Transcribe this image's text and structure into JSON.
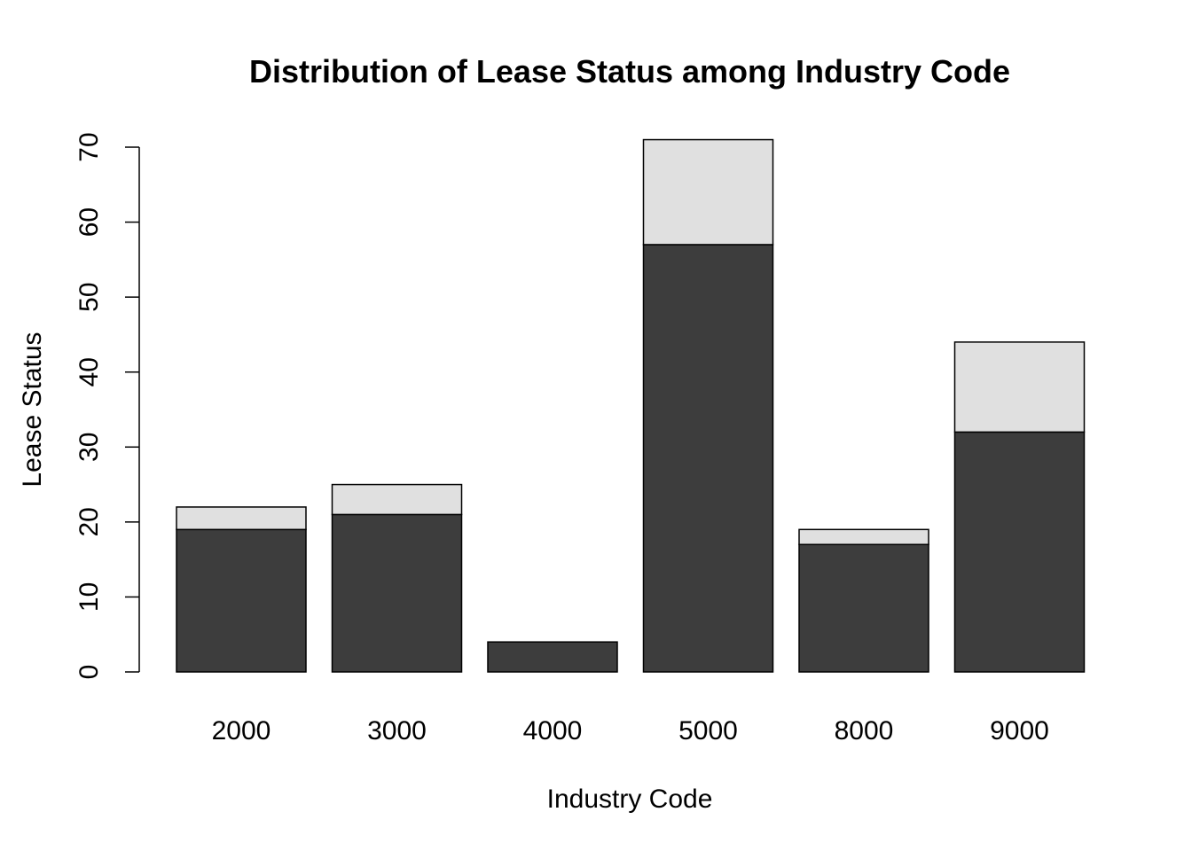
{
  "chart_data": {
    "type": "bar",
    "stacked": true,
    "title": "Distribution of Lease Status among Industry Code",
    "xlabel": "Industry Code",
    "ylabel": "Lease Status",
    "categories": [
      "2000",
      "3000",
      "4000",
      "5000",
      "8000",
      "9000"
    ],
    "series": [
      {
        "values": [
          19,
          21,
          4,
          57,
          17,
          32
        ],
        "color": "#3d3d3d"
      },
      {
        "values": [
          3,
          4,
          0,
          14,
          2,
          12
        ],
        "color": "#e0e0e0"
      }
    ],
    "ylim": [
      0,
      70
    ],
    "yticks": [
      0,
      10,
      20,
      30,
      40,
      50,
      60,
      70
    ],
    "grid": false,
    "legend": "none"
  }
}
